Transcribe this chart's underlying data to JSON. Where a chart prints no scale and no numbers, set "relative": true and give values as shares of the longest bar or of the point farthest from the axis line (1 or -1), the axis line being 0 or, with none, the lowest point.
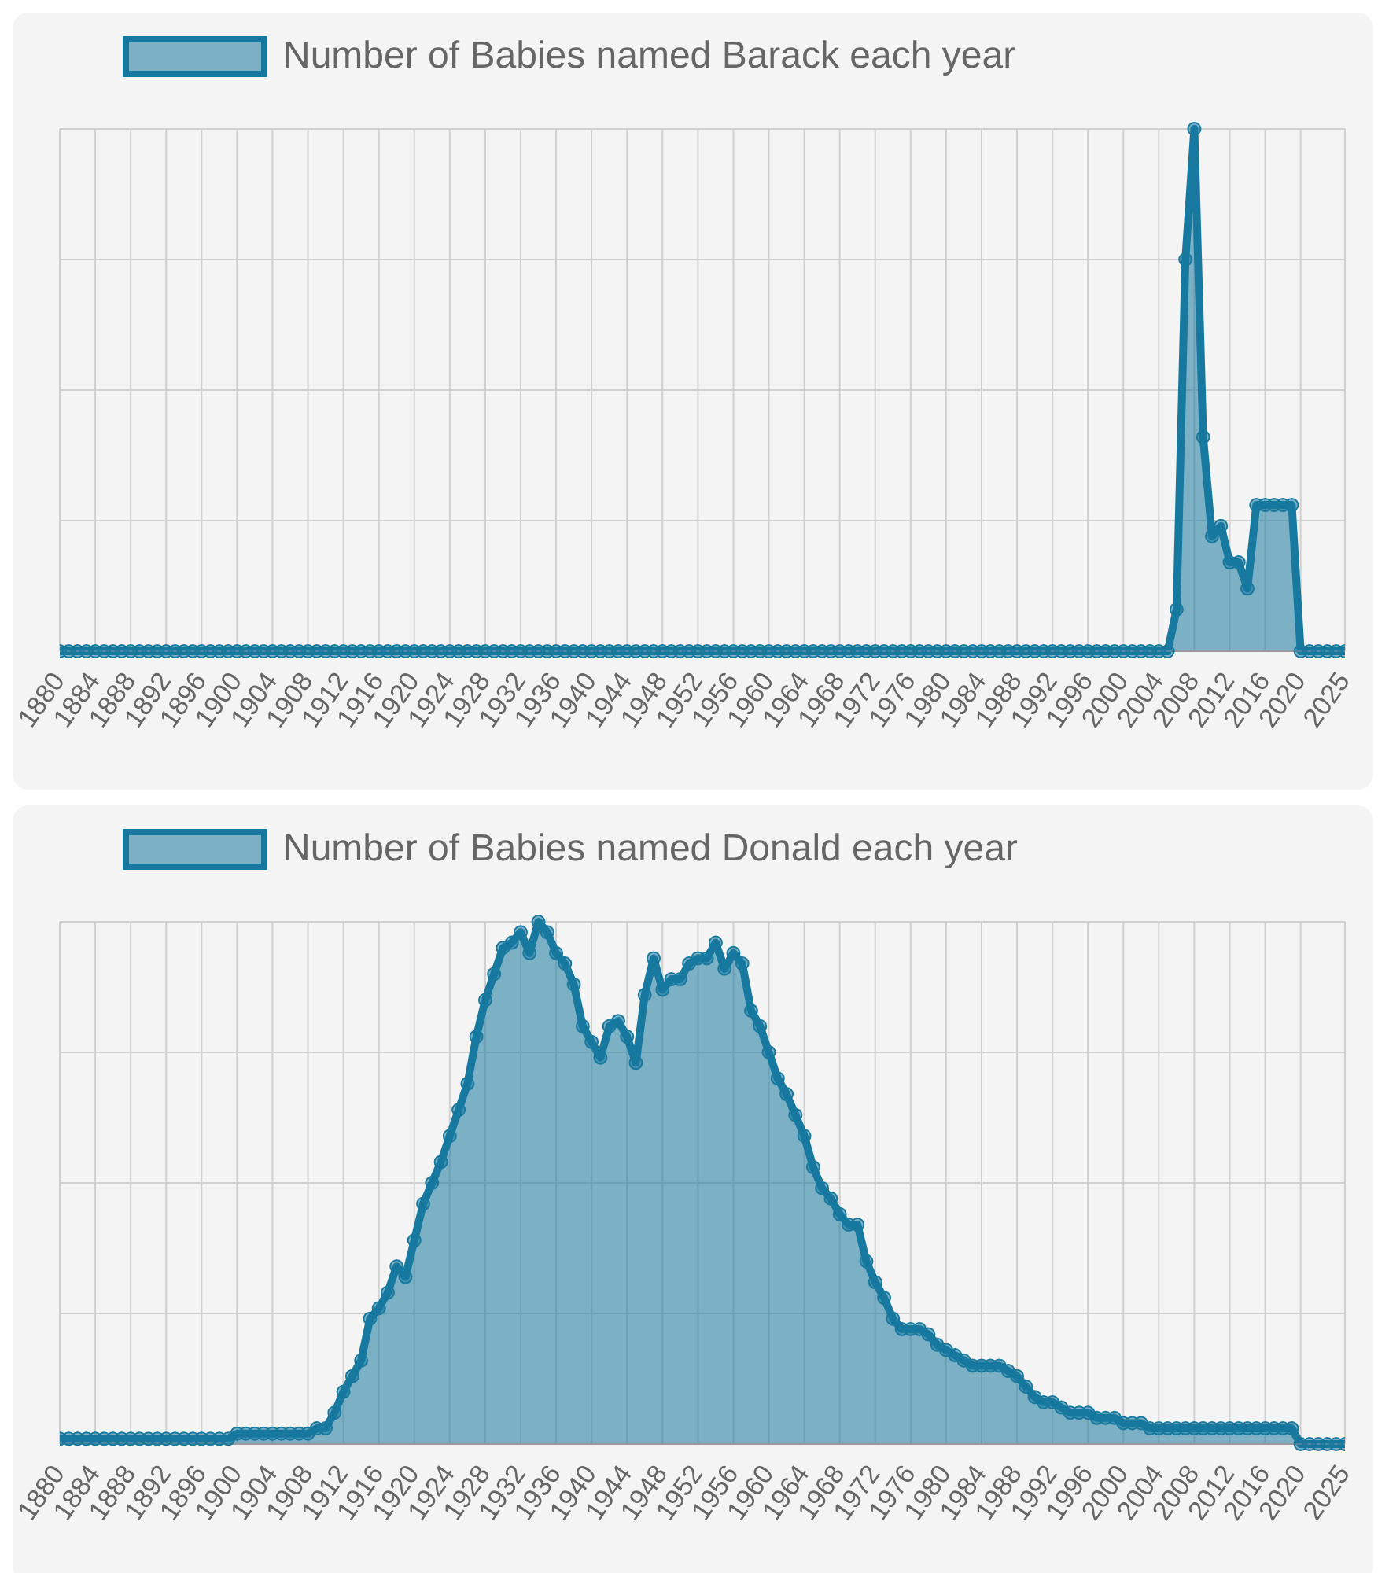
{
  "chart_data": [
    {
      "type": "area",
      "relative": true,
      "grid": true,
      "legend": "top",
      "marker": "circle",
      "line_style": "solid",
      "categories": [
        "1880",
        null,
        null,
        null,
        "1884",
        null,
        null,
        null,
        "1888",
        null,
        null,
        null,
        "1892",
        null,
        null,
        null,
        "1896",
        null,
        null,
        null,
        "1900",
        null,
        null,
        null,
        "1904",
        null,
        null,
        null,
        "1908",
        null,
        null,
        null,
        "1912",
        null,
        null,
        null,
        "1916",
        null,
        null,
        null,
        "1920",
        null,
        null,
        null,
        "1924",
        null,
        null,
        null,
        "1928",
        null,
        null,
        null,
        "1932",
        null,
        null,
        null,
        "1936",
        null,
        null,
        null,
        "1940",
        null,
        null,
        null,
        "1944",
        null,
        null,
        null,
        "1948",
        null,
        null,
        null,
        "1952",
        null,
        null,
        null,
        "1956",
        null,
        null,
        null,
        "1960",
        null,
        null,
        null,
        "1964",
        null,
        null,
        null,
        "1968",
        null,
        null,
        null,
        "1972",
        null,
        null,
        null,
        "1976",
        null,
        null,
        null,
        "1980",
        null,
        null,
        null,
        "1984",
        null,
        null,
        null,
        "1988",
        null,
        null,
        null,
        "1992",
        null,
        null,
        null,
        "1996",
        null,
        null,
        null,
        "2000",
        null,
        null,
        null,
        "2004",
        null,
        null,
        null,
        "2008",
        null,
        null,
        null,
        "2012",
        null,
        null,
        null,
        "2016",
        null,
        null,
        null,
        "2020",
        null,
        null,
        null,
        null,
        "2025"
      ],
      "series": [
        {
          "name": "Number of Babies named Barack each year",
          "color": "#17799f",
          "values": [
            0,
            0,
            0,
            0,
            0,
            0,
            0,
            0,
            0,
            0,
            0,
            0,
            0,
            0,
            0,
            0,
            0,
            0,
            0,
            0,
            0,
            0,
            0,
            0,
            0,
            0,
            0,
            0,
            0,
            0,
            0,
            0,
            0,
            0,
            0,
            0,
            0,
            0,
            0,
            0,
            0,
            0,
            0,
            0,
            0,
            0,
            0,
            0,
            0,
            0,
            0,
            0,
            0,
            0,
            0,
            0,
            0,
            0,
            0,
            0,
            0,
            0,
            0,
            0,
            0,
            0,
            0,
            0,
            0,
            0,
            0,
            0,
            0,
            0,
            0,
            0,
            0,
            0,
            0,
            0,
            0,
            0,
            0,
            0,
            0,
            0,
            0,
            0,
            0,
            0,
            0,
            0,
            0,
            0,
            0,
            0,
            0,
            0,
            0,
            0,
            0,
            0,
            0,
            0,
            0,
            0,
            0,
            0,
            0,
            0,
            0,
            0,
            0,
            0,
            0,
            0,
            0,
            0,
            0,
            0,
            0,
            0,
            0,
            0,
            0,
            0,
            0.08,
            0.75,
            1,
            0.41,
            0.22,
            0.24,
            0.17,
            0.17,
            0.12,
            0.28,
            0.28,
            0.28,
            0.28,
            0.28,
            0,
            0,
            0,
            0,
            0,
            0
          ]
        }
      ]
    },
    {
      "type": "area",
      "relative": true,
      "grid": true,
      "legend": "top",
      "marker": "circle",
      "line_style": "solid",
      "categories": [
        "1880",
        null,
        null,
        null,
        "1884",
        null,
        null,
        null,
        "1888",
        null,
        null,
        null,
        "1892",
        null,
        null,
        null,
        "1896",
        null,
        null,
        null,
        "1900",
        null,
        null,
        null,
        "1904",
        null,
        null,
        null,
        "1908",
        null,
        null,
        null,
        "1912",
        null,
        null,
        null,
        "1916",
        null,
        null,
        null,
        "1920",
        null,
        null,
        null,
        "1924",
        null,
        null,
        null,
        "1928",
        null,
        null,
        null,
        "1932",
        null,
        null,
        null,
        "1936",
        null,
        null,
        null,
        "1940",
        null,
        null,
        null,
        "1944",
        null,
        null,
        null,
        "1948",
        null,
        null,
        null,
        "1952",
        null,
        null,
        null,
        "1956",
        null,
        null,
        null,
        "1960",
        null,
        null,
        null,
        "1964",
        null,
        null,
        null,
        "1968",
        null,
        null,
        null,
        "1972",
        null,
        null,
        null,
        "1976",
        null,
        null,
        null,
        "1980",
        null,
        null,
        null,
        "1984",
        null,
        null,
        null,
        "1988",
        null,
        null,
        null,
        "1992",
        null,
        null,
        null,
        "1996",
        null,
        null,
        null,
        "2000",
        null,
        null,
        null,
        "2004",
        null,
        null,
        null,
        "2008",
        null,
        null,
        null,
        "2012",
        null,
        null,
        null,
        "2016",
        null,
        null,
        null,
        "2020",
        null,
        null,
        null,
        null,
        "2025"
      ],
      "series": [
        {
          "name": "Number of Babies named Donald each year",
          "color": "#17799f",
          "values": [
            0.01,
            0.01,
            0.01,
            0.01,
            0.01,
            0.01,
            0.01,
            0.01,
            0.01,
            0.01,
            0.01,
            0.01,
            0.01,
            0.01,
            0.01,
            0.01,
            0.01,
            0.01,
            0.01,
            0.01,
            0.02,
            0.02,
            0.02,
            0.02,
            0.02,
            0.02,
            0.02,
            0.02,
            0.02,
            0.03,
            0.03,
            0.06,
            0.1,
            0.13,
            0.16,
            0.24,
            0.26,
            0.29,
            0.34,
            0.32,
            0.39,
            0.46,
            0.5,
            0.54,
            0.59,
            0.64,
            0.69,
            0.78,
            0.85,
            0.9,
            0.95,
            0.96,
            0.98,
            0.94,
            1,
            0.98,
            0.94,
            0.92,
            0.88,
            0.8,
            0.77,
            0.74,
            0.8,
            0.81,
            0.78,
            0.73,
            0.86,
            0.93,
            0.87,
            0.89,
            0.89,
            0.92,
            0.93,
            0.93,
            0.96,
            0.91,
            0.94,
            0.92,
            0.83,
            0.8,
            0.75,
            0.7,
            0.67,
            0.63,
            0.59,
            0.53,
            0.49,
            0.47,
            0.44,
            0.42,
            0.42,
            0.35,
            0.31,
            0.28,
            0.24,
            0.22,
            0.22,
            0.22,
            0.21,
            0.19,
            0.18,
            0.17,
            0.16,
            0.15,
            0.15,
            0.15,
            0.15,
            0.14,
            0.13,
            0.11,
            0.09,
            0.08,
            0.08,
            0.07,
            0.06,
            0.06,
            0.06,
            0.05,
            0.05,
            0.05,
            0.04,
            0.04,
            0.04,
            0.03,
            0.03,
            0.03,
            0.03,
            0.03,
            0.03,
            0.03,
            0.03,
            0.03,
            0.03,
            0.03,
            0.03,
            0.03,
            0.03,
            0.03,
            0.03,
            0.03,
            0,
            0,
            0,
            0,
            0,
            0
          ]
        }
      ]
    }
  ]
}
